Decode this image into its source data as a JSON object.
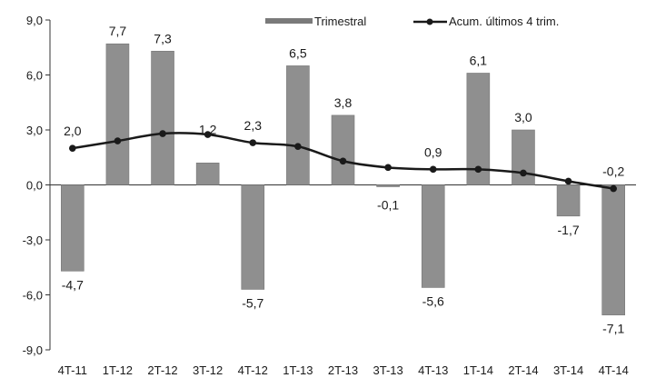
{
  "chart_data": {
    "type": "bar",
    "categories": [
      "4T-11",
      "1T-12",
      "2T-12",
      "3T-12",
      "4T-12",
      "1T-13",
      "2T-13",
      "3T-13",
      "4T-13",
      "1T-14",
      "2T-14",
      "3T-14",
      "4T-14"
    ],
    "series": [
      {
        "name": "Trimestral",
        "type": "bar",
        "values": [
          -4.7,
          7.7,
          7.3,
          1.2,
          -5.7,
          6.5,
          3.8,
          -0.1,
          -5.6,
          6.1,
          3.0,
          -1.7,
          -7.1
        ],
        "labels": [
          "-4,7",
          "7,7",
          "7,3",
          "1,2",
          "-5,7",
          "6,5",
          "3,8",
          "-0,1",
          "-5,6",
          "6,1",
          "3,0",
          "-1,7",
          "-7,1"
        ]
      },
      {
        "name": "Acum. últimos 4 trim.",
        "type": "line",
        "values": [
          2.0,
          2.4,
          2.8,
          2.75,
          2.3,
          2.1,
          1.3,
          0.95,
          0.85,
          0.85,
          0.65,
          0.2,
          -0.2
        ],
        "labels": [
          "2,0",
          null,
          null,
          null,
          "2,3",
          null,
          null,
          null,
          "0,9",
          null,
          null,
          null,
          "-0,2"
        ]
      }
    ],
    "ylim": [
      -9,
      9
    ],
    "yticks": [
      9,
      6,
      3,
      0,
      -3,
      -6,
      -9
    ],
    "ytick_labels": [
      "9,0",
      "6,0",
      "3,0",
      "0,0",
      "-3,0",
      "-6,0",
      "-9,0"
    ],
    "title": "",
    "xlabel": "",
    "ylabel": "",
    "grid": false,
    "legend_position": "top",
    "colors": {
      "bar": "#8f8f8f",
      "line": "#1a1a1a",
      "axis": "#333333"
    }
  }
}
